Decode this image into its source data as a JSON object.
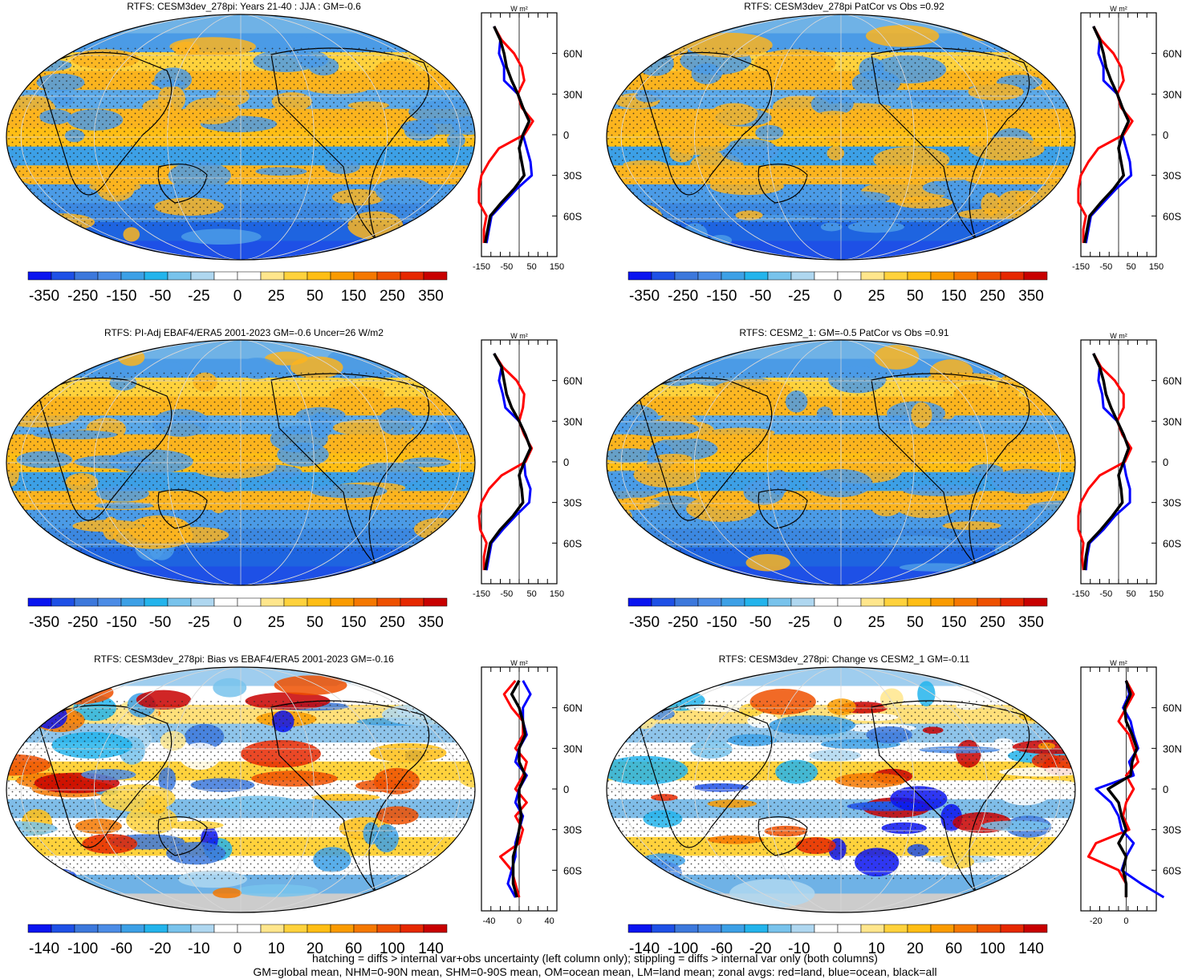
{
  "colors": {
    "zonal_land": "#ff0000",
    "zonal_ocean": "#0000ff",
    "zonal_all": "#000000",
    "palette": [
      "#0a14f0",
      "#1e50e6",
      "#3c78dc",
      "#4b8ce6",
      "#3ca0e6",
      "#23b4ec",
      "#78c3ec",
      "#afd7f0",
      "#ffffff",
      "#ffffff",
      "#ffe68c",
      "#ffd23c",
      "#ffbe14",
      "#fa9b00",
      "#f57800",
      "#ee5000",
      "#e62800",
      "#c80000"
    ]
  },
  "footer": {
    "line1": "hatching = diffs > internal var+obs uncertainty (left column only); stippling = diffs > internal var only (both columns)",
    "line2": "GM=global mean, NHM=0-90N mean, SHM=0-90S mean, OM=ocean mean, LM=land mean; zonal avgs: red=land, blue=ocean, black=all"
  },
  "chart_data": [
    {
      "type": "heatmap",
      "title": "RTFS: CESM3dev_278pi: Years 21-40 : JJA : GM=-0.6",
      "colorbar_labels": [
        "-350",
        "-250",
        "-150",
        "-50",
        "-25",
        "0",
        "25",
        "50",
        "150",
        "250",
        "350"
      ],
      "zonal": {
        "unit": "W m²",
        "x_ticks": [
          "-150",
          "-50",
          "50",
          "150"
        ],
        "xlim": [
          -150,
          150
        ],
        "y_ticks": [
          "60N",
          "30N",
          "0",
          "30S",
          "60S"
        ],
        "latitudes": [
          80,
          70,
          60,
          50,
          40,
          30,
          20,
          10,
          0,
          -10,
          -20,
          -30,
          -40,
          -50,
          -60,
          -70,
          -80
        ],
        "series": [
          {
            "name": "land",
            "values": [
              -100,
              -70,
              -20,
              10,
              20,
              -5,
              10,
              55,
              20,
              -80,
              -120,
              -150,
              -160,
              -160,
              -130,
              -140,
              -140
            ]
          },
          {
            "name": "ocean",
            "values": [
              -100,
              -75,
              -80,
              -60,
              -60,
              -5,
              15,
              40,
              15,
              30,
              45,
              50,
              -10,
              -60,
              -110,
              -120,
              -130
            ]
          },
          {
            "name": "all",
            "values": [
              -100,
              -75,
              -60,
              -50,
              -30,
              -5,
              15,
              40,
              15,
              0,
              10,
              20,
              -20,
              -70,
              -115,
              -125,
              -135
            ]
          }
        ]
      }
    },
    {
      "type": "heatmap",
      "title": "RTFS: CESM3dev_278pi PatCor vs Obs =0.92",
      "colorbar_labels": [
        "-350",
        "-250",
        "-150",
        "-50",
        "-25",
        "0",
        "25",
        "50",
        "150",
        "250",
        "350"
      ],
      "zonal": {
        "unit": "W m²",
        "x_ticks": [
          "-150",
          "-50",
          "50",
          "150"
        ],
        "xlim": [
          -150,
          150
        ],
        "y_ticks": [
          "60N",
          "30N",
          "0",
          "30S",
          "60S"
        ],
        "latitudes": [
          80,
          70,
          60,
          50,
          40,
          30,
          20,
          10,
          0,
          -10,
          -20,
          -30,
          -40,
          -50,
          -60,
          -70,
          -80
        ],
        "series": [
          {
            "name": "land",
            "values": [
              -100,
              -70,
              -20,
              10,
              20,
              -5,
              10,
              55,
              20,
              -80,
              -120,
              -150,
              -160,
              -160,
              -130,
              -140,
              -140
            ]
          },
          {
            "name": "ocean",
            "values": [
              -100,
              -75,
              -80,
              -60,
              -60,
              -5,
              15,
              40,
              15,
              30,
              45,
              50,
              -10,
              -60,
              -110,
              -120,
              -130
            ]
          },
          {
            "name": "all",
            "values": [
              -100,
              -75,
              -60,
              -50,
              -30,
              -5,
              15,
              40,
              15,
              0,
              10,
              20,
              -20,
              -70,
              -115,
              -125,
              -135
            ]
          }
        ]
      }
    },
    {
      "type": "heatmap",
      "title": "RTFS: PI-Adj EBAF4/ERA5 2001-2023 GM=-0.6 Uncer=26 W/m2",
      "colorbar_labels": [
        "-350",
        "-250",
        "-150",
        "-50",
        "-25",
        "0",
        "25",
        "50",
        "150",
        "250",
        "350"
      ],
      "zonal": {
        "unit": "W m²",
        "x_ticks": [
          "-150",
          "-50",
          "50",
          "150"
        ],
        "xlim": [
          -150,
          150
        ],
        "y_ticks": [
          "60N",
          "30N",
          "0",
          "30S",
          "60S"
        ],
        "latitudes": [
          80,
          70,
          60,
          50,
          40,
          30,
          20,
          10,
          0,
          -10,
          -20,
          -30,
          -40,
          -50,
          -60,
          -70,
          -80
        ],
        "series": [
          {
            "name": "land",
            "values": [
              -100,
              -65,
              -10,
              20,
              15,
              0,
              20,
              50,
              25,
              -70,
              -120,
              -150,
              -160,
              -155,
              -130,
              -140,
              -140
            ]
          },
          {
            "name": "ocean",
            "values": [
              -100,
              -70,
              -80,
              -65,
              -55,
              0,
              25,
              45,
              20,
              25,
              45,
              40,
              -15,
              -65,
              -110,
              -120,
              -130
            ]
          },
          {
            "name": "all",
            "values": [
              -100,
              -70,
              -60,
              -50,
              -30,
              0,
              25,
              45,
              20,
              0,
              10,
              15,
              -25,
              -75,
              -115,
              -125,
              -135
            ]
          }
        ]
      }
    },
    {
      "type": "heatmap",
      "title": "RTFS: CESM2_1: GM=-0.5 PatCor vs Obs =0.91",
      "colorbar_labels": [
        "-350",
        "-250",
        "-150",
        "-50",
        "-25",
        "0",
        "25",
        "50",
        "150",
        "250",
        "350"
      ],
      "zonal": {
        "unit": "W m²",
        "x_ticks": [
          "-150",
          "-50",
          "50",
          "150"
        ],
        "xlim": [
          -150,
          150
        ],
        "y_ticks": [
          "60N",
          "30N",
          "0",
          "30S",
          "60S"
        ],
        "latitudes": [
          80,
          70,
          60,
          50,
          40,
          30,
          20,
          10,
          0,
          -10,
          -20,
          -30,
          -40,
          -50,
          -60,
          -70,
          -80
        ],
        "series": [
          {
            "name": "land",
            "values": [
              -100,
              -70,
              -15,
              20,
              20,
              -5,
              15,
              50,
              25,
              -75,
              -120,
              -150,
              -160,
              -160,
              -140,
              -145,
              -140
            ]
          },
          {
            "name": "ocean",
            "values": [
              -100,
              -75,
              -80,
              -65,
              -60,
              -5,
              20,
              40,
              20,
              30,
              45,
              45,
              -15,
              -60,
              -115,
              -125,
              -130
            ]
          },
          {
            "name": "all",
            "values": [
              -100,
              -75,
              -60,
              -50,
              -30,
              -5,
              20,
              40,
              20,
              0,
              10,
              15,
              -25,
              -70,
              -120,
              -130,
              -135
            ]
          }
        ]
      }
    },
    {
      "type": "heatmap",
      "title": "RTFS: CESM3dev_278pi: Bias vs EBAF4/ERA5 2001-2023 GM=-0.16",
      "colorbar_labels": [
        "-140",
        "-100",
        "-60",
        "-20",
        "-10",
        "0",
        "10",
        "20",
        "60",
        "100",
        "140"
      ],
      "zonal": {
        "unit": "W m²",
        "x_ticks": [
          "-40",
          "0",
          "40"
        ],
        "xlim": [
          -50,
          50
        ],
        "y_ticks": [
          "60N",
          "30N",
          "0",
          "30S",
          "60S"
        ],
        "latitudes": [
          80,
          70,
          60,
          50,
          40,
          30,
          20,
          10,
          0,
          -10,
          -20,
          -30,
          -40,
          -50,
          -60,
          -70,
          -80
        ],
        "series": [
          {
            "name": "land",
            "values": [
              -5,
              -20,
              -10,
              5,
              5,
              -5,
              10,
              5,
              -5,
              10,
              -5,
              5,
              0,
              -25,
              -10,
              -5,
              0
            ]
          },
          {
            "name": "ocean",
            "values": [
              5,
              15,
              5,
              5,
              10,
              0,
              -5,
              10,
              0,
              -5,
              5,
              0,
              -5,
              -5,
              -10,
              -15,
              -5
            ]
          },
          {
            "name": "all",
            "values": [
              0,
              -10,
              0,
              5,
              8,
              0,
              0,
              8,
              0,
              0,
              3,
              0,
              -3,
              -8,
              -8,
              -8,
              -3
            ]
          }
        ]
      }
    },
    {
      "type": "heatmap",
      "title": "RTFS: CESM3dev_278pi: Change vs CESM2_1 GM=-0.11",
      "colorbar_labels": [
        "-140",
        "-100",
        "-60",
        "-20",
        "-10",
        "0",
        "10",
        "20",
        "60",
        "100",
        "140"
      ],
      "zonal": {
        "unit": "W m²",
        "x_ticks": [
          "-20",
          "0"
        ],
        "xlim": [
          -30,
          20
        ],
        "y_ticks": [
          "60N",
          "30N",
          "0",
          "30S",
          "60S"
        ],
        "latitudes": [
          80,
          70,
          60,
          50,
          40,
          30,
          20,
          10,
          0,
          -10,
          -20,
          -30,
          -40,
          -50,
          -60,
          -70,
          -80
        ],
        "series": [
          {
            "name": "land",
            "values": [
              0,
              5,
              0,
              -5,
              2,
              5,
              8,
              0,
              5,
              0,
              -2,
              2,
              -20,
              -25,
              -5,
              0,
              0
            ]
          },
          {
            "name": "ocean",
            "values": [
              0,
              2,
              -2,
              3,
              5,
              8,
              2,
              5,
              -20,
              -10,
              -5,
              -3,
              5,
              0,
              -3,
              10,
              25
            ]
          },
          {
            "name": "all",
            "values": [
              0,
              3,
              -1,
              0,
              4,
              7,
              4,
              3,
              -12,
              -5,
              -3,
              0,
              -5,
              0,
              -2,
              0,
              0
            ]
          }
        ]
      }
    }
  ]
}
